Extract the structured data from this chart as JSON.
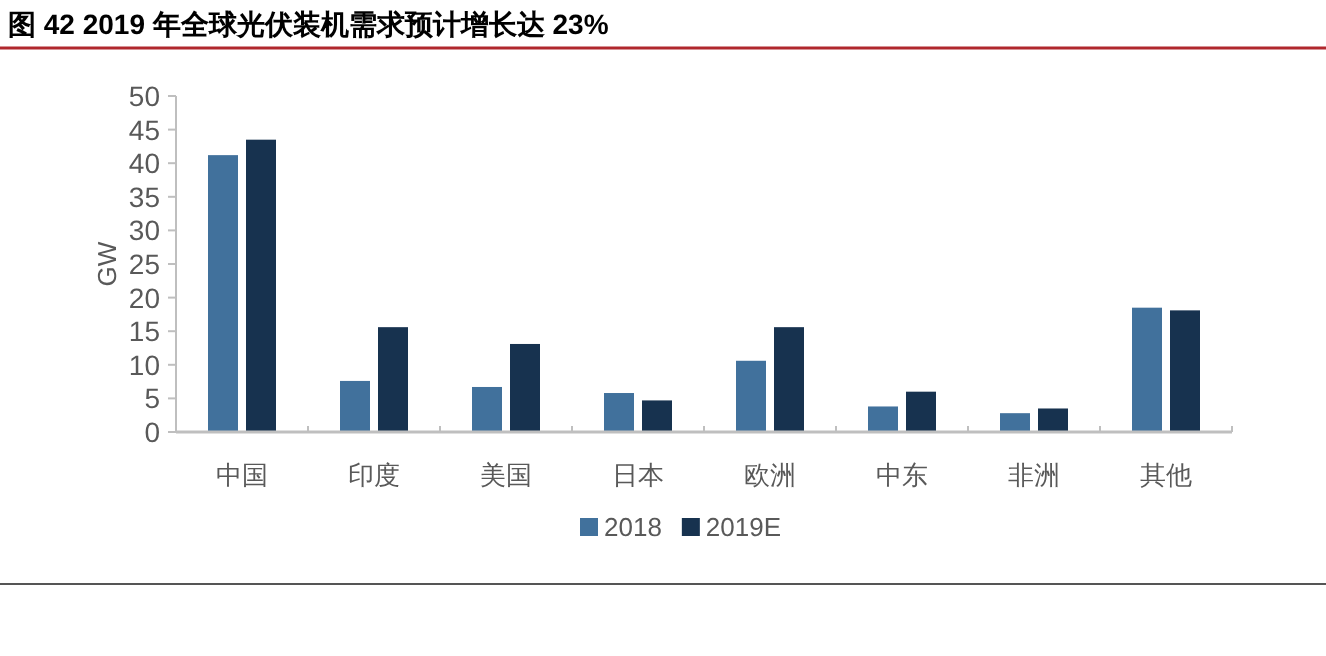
{
  "chart_data": {
    "type": "bar",
    "title": "图 42 2019 年全球光伏装机需求预计增长达 23%",
    "ylabel": "GW",
    "categories": [
      "中国",
      "印度",
      "美国",
      "日本",
      "欧洲",
      "中东",
      "非洲",
      "其他"
    ],
    "series": [
      {
        "name": "2018",
        "color": "#41719c",
        "values": [
          41.2,
          7.6,
          6.7,
          5.8,
          10.6,
          3.8,
          2.8,
          18.5
        ]
      },
      {
        "name": "2019E",
        "color": "#17324f",
        "values": [
          43.5,
          15.6,
          13.1,
          4.7,
          15.6,
          6.0,
          3.5,
          18.1
        ]
      }
    ],
    "ylim": [
      0,
      50
    ],
    "yticks": [
      0,
      5,
      10,
      15,
      20,
      25,
      30,
      35,
      40,
      45,
      50
    ],
    "grid": false,
    "legend": "bottom"
  }
}
